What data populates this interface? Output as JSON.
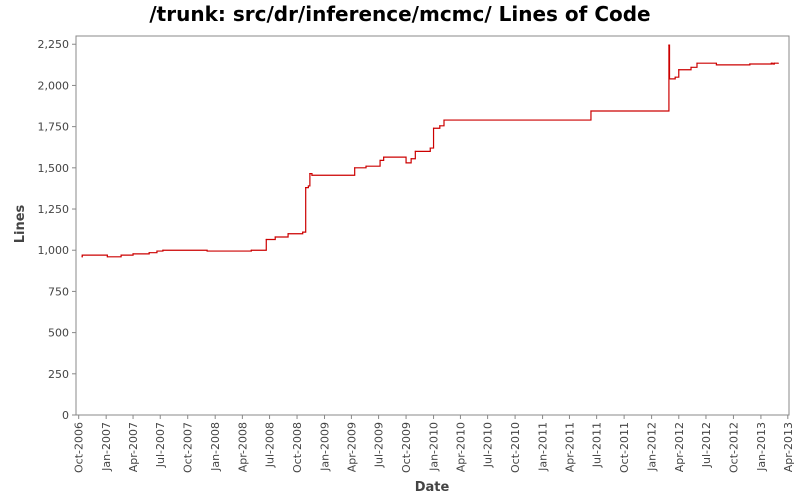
{
  "chart_data": {
    "type": "line",
    "title": "/trunk: src/dr/inference/mcmc/ Lines of Code",
    "xlabel": "Date",
    "ylabel": "Lines",
    "ylim": [
      0,
      2300
    ],
    "xlim": [
      "2006-09-22",
      "2013-04-05"
    ],
    "y_ticks": [
      0,
      250,
      500,
      750,
      1000,
      1250,
      1500,
      1750,
      2000,
      2250
    ],
    "y_tick_labels": [
      "0",
      "250",
      "500",
      "750",
      "1,000",
      "1,250",
      "1,500",
      "1,750",
      "2,000",
      "2,250"
    ],
    "x_ticks": [
      "2006-10-01",
      "2007-01-01",
      "2007-04-01",
      "2007-07-01",
      "2007-10-01",
      "2008-01-01",
      "2008-04-01",
      "2008-07-01",
      "2008-10-01",
      "2009-01-01",
      "2009-04-01",
      "2009-07-01",
      "2009-10-01",
      "2010-01-01",
      "2010-04-01",
      "2010-07-01",
      "2010-10-01",
      "2011-01-01",
      "2011-04-01",
      "2011-07-01",
      "2011-10-01",
      "2012-01-01",
      "2012-04-01",
      "2012-07-01",
      "2012-10-01",
      "2013-01-01",
      "2013-04-01"
    ],
    "x_tick_labels": [
      "Oct-2006",
      "Jan-2007",
      "Apr-2007",
      "Jul-2007",
      "Oct-2007",
      "Jan-2008",
      "Apr-2008",
      "Jul-2008",
      "Oct-2008",
      "Jan-2009",
      "Apr-2009",
      "Jul-2009",
      "Oct-2009",
      "Jan-2010",
      "Apr-2010",
      "Jul-2010",
      "Oct-2010",
      "Jan-2011",
      "Apr-2011",
      "Jul-2011",
      "Oct-2011",
      "Jan-2012",
      "Apr-2012",
      "Jul-2012",
      "Oct-2012",
      "Jan-2013",
      "Apr-2013"
    ],
    "grid": false,
    "series": [
      {
        "name": "",
        "color": "#cc0000",
        "step": true,
        "points": [
          [
            "2006-10-12",
            960
          ],
          [
            "2006-10-13",
            970
          ],
          [
            "2007-01-05",
            960
          ],
          [
            "2007-02-20",
            970
          ],
          [
            "2007-04-01",
            978
          ],
          [
            "2007-05-25",
            985
          ],
          [
            "2007-06-20",
            995
          ],
          [
            "2007-07-10",
            1000
          ],
          [
            "2007-12-05",
            995
          ],
          [
            "2008-05-01",
            1000
          ],
          [
            "2008-06-20",
            1065
          ],
          [
            "2008-07-20",
            1080
          ],
          [
            "2008-09-01",
            1100
          ],
          [
            "2008-10-20",
            1110
          ],
          [
            "2008-10-30",
            1380
          ],
          [
            "2008-11-08",
            1390
          ],
          [
            "2008-11-13",
            1465
          ],
          [
            "2008-11-20",
            1455
          ],
          [
            "2009-04-12",
            1500
          ],
          [
            "2009-05-20",
            1510
          ],
          [
            "2009-07-06",
            1545
          ],
          [
            "2009-07-18",
            1565
          ],
          [
            "2009-10-01",
            1530
          ],
          [
            "2009-10-18",
            1555
          ],
          [
            "2009-11-01",
            1600
          ],
          [
            "2009-12-21",
            1620
          ],
          [
            "2010-01-01",
            1740
          ],
          [
            "2010-01-22",
            1755
          ],
          [
            "2010-02-05",
            1790
          ],
          [
            "2011-06-12",
            1845
          ],
          [
            "2012-02-28",
            2245
          ],
          [
            "2012-03-01",
            2040
          ],
          [
            "2012-03-20",
            2050
          ],
          [
            "2012-04-01",
            2095
          ],
          [
            "2012-05-12",
            2110
          ],
          [
            "2012-06-01",
            2135
          ],
          [
            "2012-08-05",
            2125
          ],
          [
            "2012-11-25",
            2130
          ],
          [
            "2013-02-05",
            2135
          ],
          [
            "2013-02-10",
            2130
          ],
          [
            "2013-02-15",
            2135
          ],
          [
            "2013-02-28",
            2135
          ]
        ]
      }
    ]
  }
}
